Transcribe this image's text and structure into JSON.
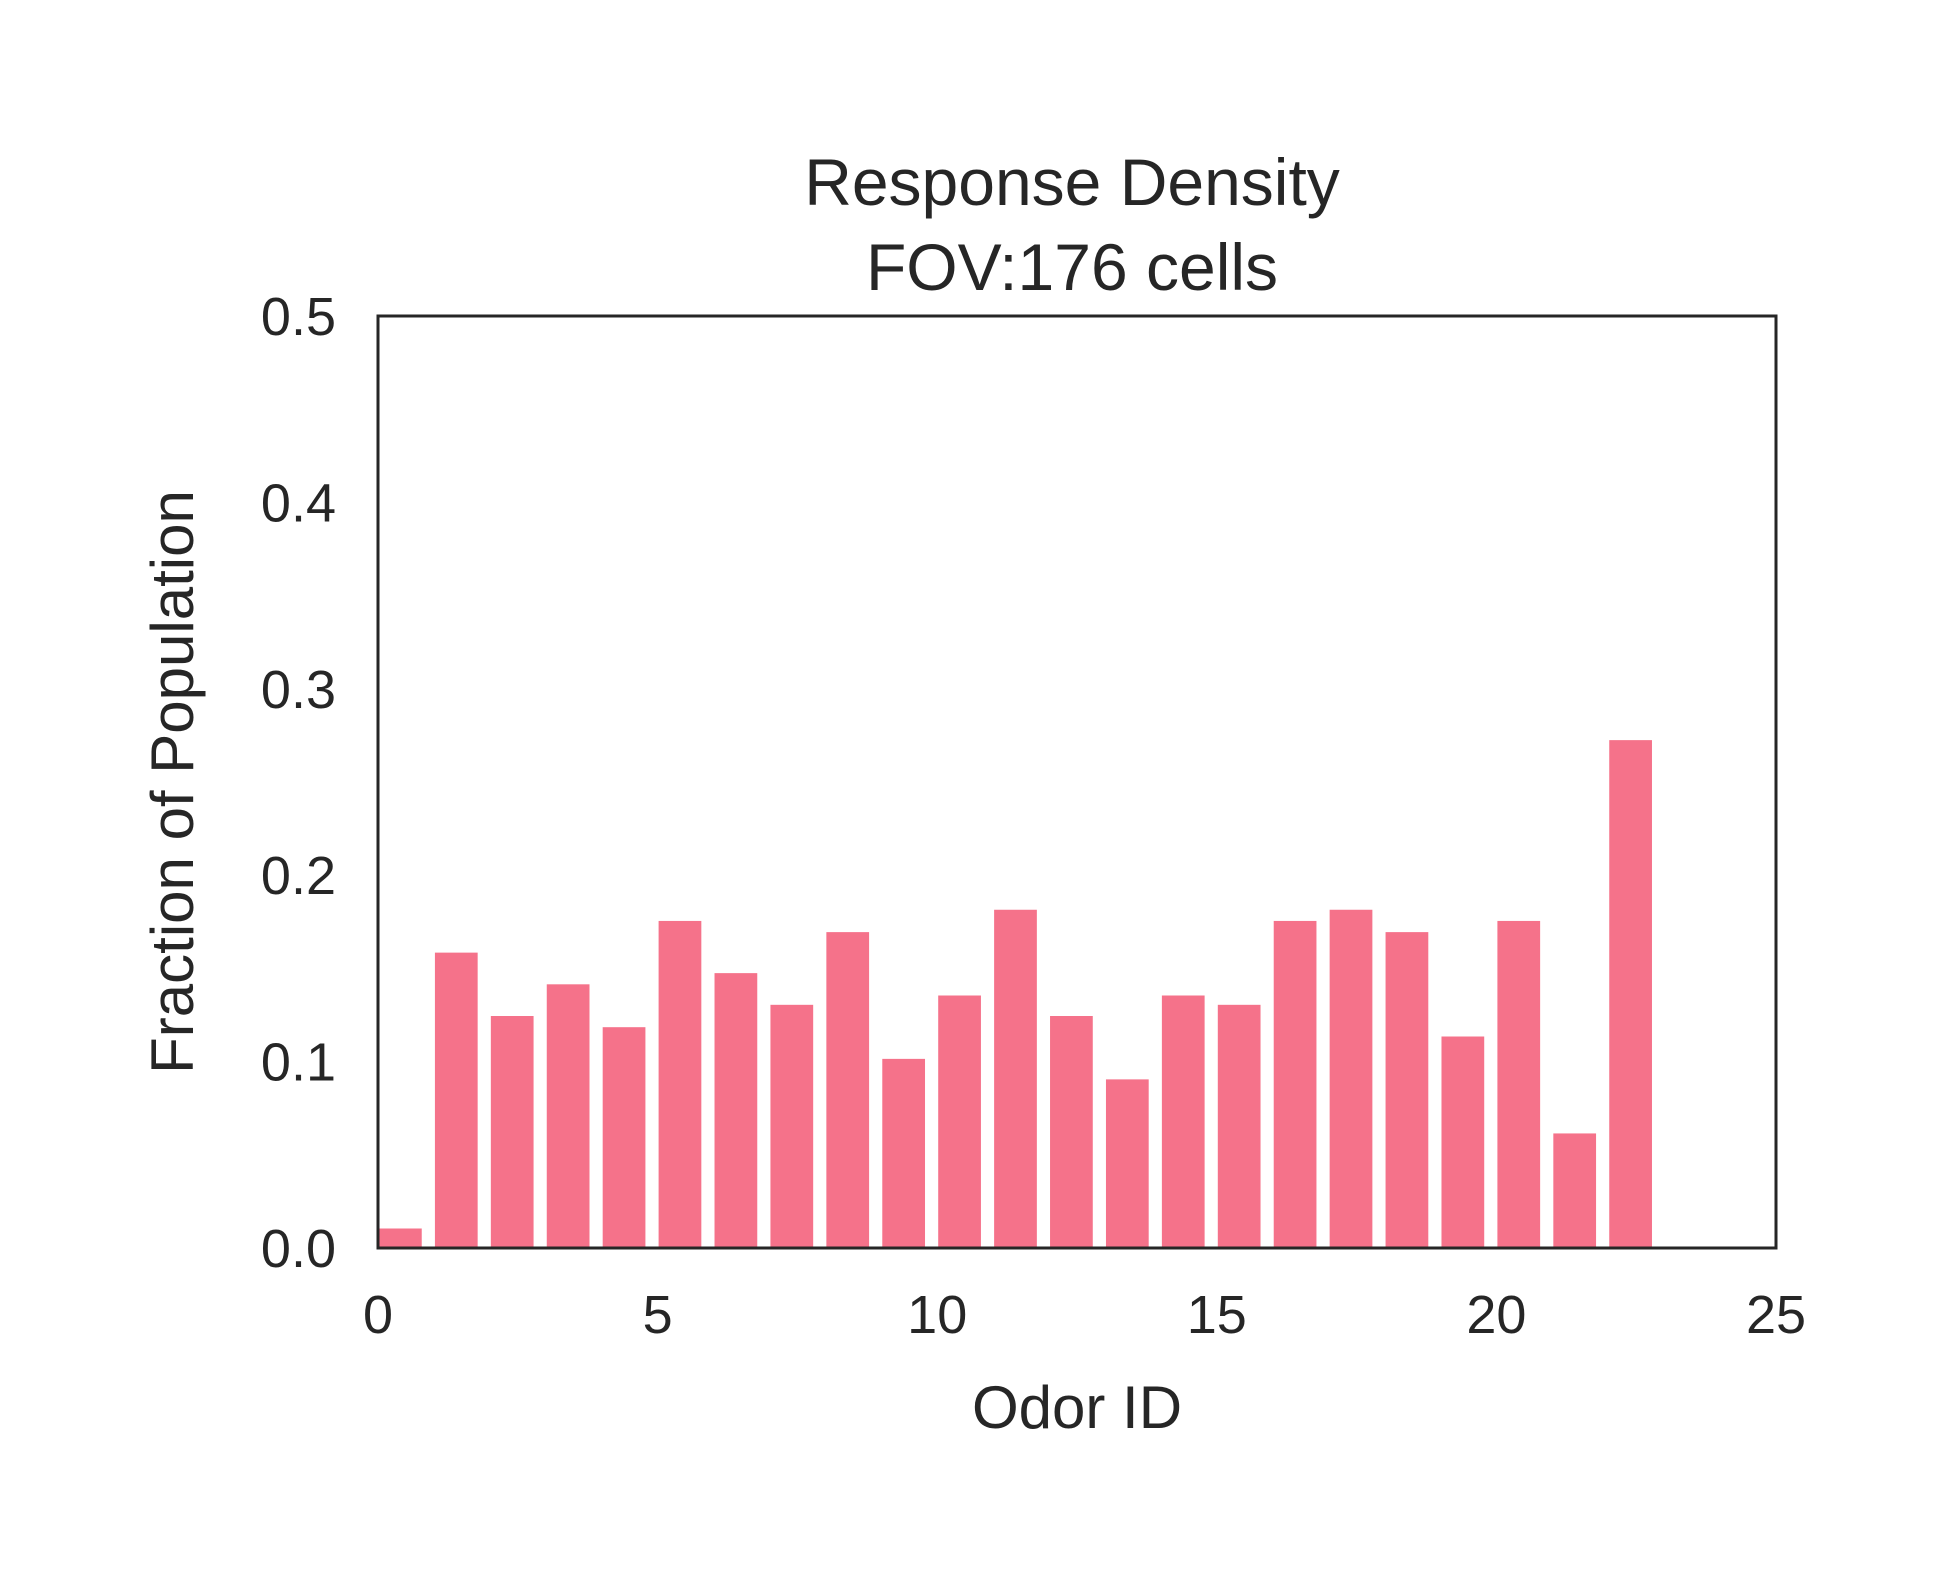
{
  "chart_data": {
    "type": "bar",
    "title": [
      "Response Density",
      "FOV:176 cells"
    ],
    "xlabel": "Odor ID",
    "ylabel": "Fraction of Population",
    "xlim": [
      0,
      25
    ],
    "ylim": [
      0,
      0.5
    ],
    "xticks": [
      "0",
      "5",
      "10",
      "15",
      "20",
      "25"
    ],
    "yticks": [
      "0.0",
      "0.1",
      "0.2",
      "0.3",
      "0.4",
      "0.5"
    ],
    "grid": false,
    "bar_color": "#f5728a",
    "x": [
      0,
      1,
      2,
      3,
      4,
      5,
      6,
      7,
      8,
      9,
      10,
      11,
      12,
      13,
      14,
      15,
      16,
      17,
      18,
      19,
      20,
      21,
      22
    ],
    "values": [
      0.011,
      0.159,
      0.125,
      0.142,
      0.119,
      0.176,
      0.148,
      0.131,
      0.17,
      0.102,
      0.136,
      0.182,
      0.125,
      0.091,
      0.136,
      0.131,
      0.176,
      0.182,
      0.17,
      0.114,
      0.176,
      0.062,
      0.273
    ]
  }
}
